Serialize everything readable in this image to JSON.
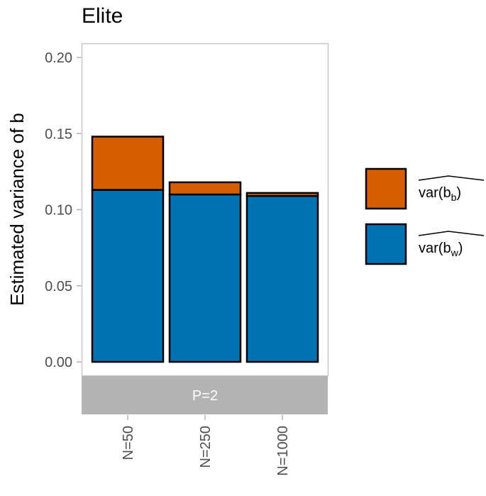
{
  "chart_data": {
    "type": "bar",
    "stacked": true,
    "title": "Elite",
    "xlabel": "",
    "ylabel": "Estimated variance of b",
    "ylim": [
      0,
      0.2
    ],
    "yticks": [
      "0.00",
      "0.05",
      "0.10",
      "0.15",
      "0.20"
    ],
    "ytick_values": [
      0.0,
      0.05,
      0.1,
      0.15,
      0.2
    ],
    "facet_label": "P=2",
    "categories": [
      "N=50",
      "N=250",
      "N=1000"
    ],
    "series": [
      {
        "name": "var(b_w)",
        "label_main": "var(b",
        "label_sub": "w",
        "color": "#0072B2",
        "values": [
          0.113,
          0.11,
          0.109
        ]
      },
      {
        "name": "var(b_b)",
        "label_main": "var(b",
        "label_sub": "b",
        "color": "#D55E00",
        "values": [
          0.035,
          0.008,
          0.002
        ]
      }
    ],
    "legend": {
      "position": "right",
      "order": [
        "var(b_b)",
        "var(b_w)"
      ]
    },
    "grid": false
  },
  "colors": {
    "panel_border": "#c8c8c8",
    "strip_bg": "#b3b3b3",
    "tick_color": "#b3b3b3",
    "bar_outline": "#000000"
  }
}
